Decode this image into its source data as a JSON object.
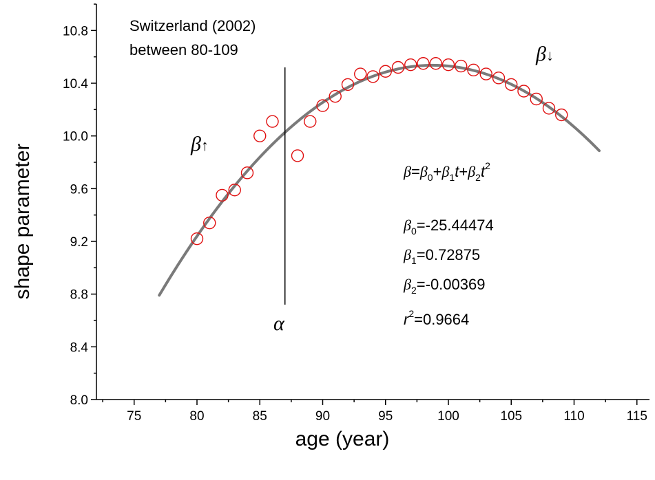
{
  "chart_data": {
    "type": "scatter",
    "title": "",
    "xlabel": "age (year)",
    "ylabel": "shape parameter",
    "xlim": [
      72,
      116
    ],
    "ylim": [
      8.0,
      11.0
    ],
    "xticks": [
      75,
      80,
      85,
      90,
      95,
      100,
      105,
      110,
      115
    ],
    "yticks": [
      8.0,
      8.4,
      8.8,
      9.2,
      9.6,
      10.0,
      10.4,
      10.8
    ],
    "grid": false,
    "series": [
      {
        "kind": "markers",
        "marker": "open-circle",
        "color": "#e01010",
        "x": [
          80,
          81,
          82,
          83,
          84,
          85,
          86,
          88,
          89,
          90,
          91,
          92,
          93,
          94,
          95,
          96,
          97,
          98,
          99,
          100,
          101,
          102,
          103,
          104,
          105,
          106,
          107,
          108,
          109
        ],
        "y": [
          9.22,
          9.34,
          9.55,
          9.59,
          9.72,
          10.0,
          10.11,
          9.85,
          10.11,
          10.23,
          10.3,
          10.39,
          10.47,
          10.45,
          10.49,
          10.52,
          10.54,
          10.55,
          10.55,
          10.54,
          10.53,
          10.5,
          10.47,
          10.44,
          10.39,
          10.34,
          10.28,
          10.21,
          10.16
        ]
      },
      {
        "kind": "fit-line",
        "color": "#7a7a7a",
        "x_range": [
          77,
          112
        ],
        "coefficients": [
          -25.44474,
          0.72875,
          -0.00369
        ]
      }
    ],
    "vline": {
      "x": 87,
      "y_range": [
        8.72,
        10.52
      ]
    },
    "annotations": {
      "dataset_line1": "Switzerland (2002)",
      "dataset_line2": "between 80-109",
      "alpha_label": "α",
      "beta_symbol": "β",
      "arrow_up": "↑",
      "arrow_down": "↓",
      "equation": {
        "beta": "β",
        "equals": "=",
        "beta0": "β",
        "sub0": "0",
        "plus1": "+",
        "beta1": "β",
        "sub1": "1",
        "t1": "t",
        "plus2": "+",
        "beta2": "β",
        "sub2": "2",
        "t2": "t",
        "sup2": "2"
      },
      "coef": {
        "b0_sym": "β",
        "b0_sub": "0",
        "b0_val": "=-25.44474",
        "b1_sym": "β",
        "b1_sub": "1",
        "b1_val": "=0.72875",
        "b2_sym": "β",
        "b2_sub": "2",
        "b2_val": "=-0.00369",
        "r_sym": "r",
        "r_sup": "2",
        "r_val": "=0.9664"
      }
    }
  }
}
